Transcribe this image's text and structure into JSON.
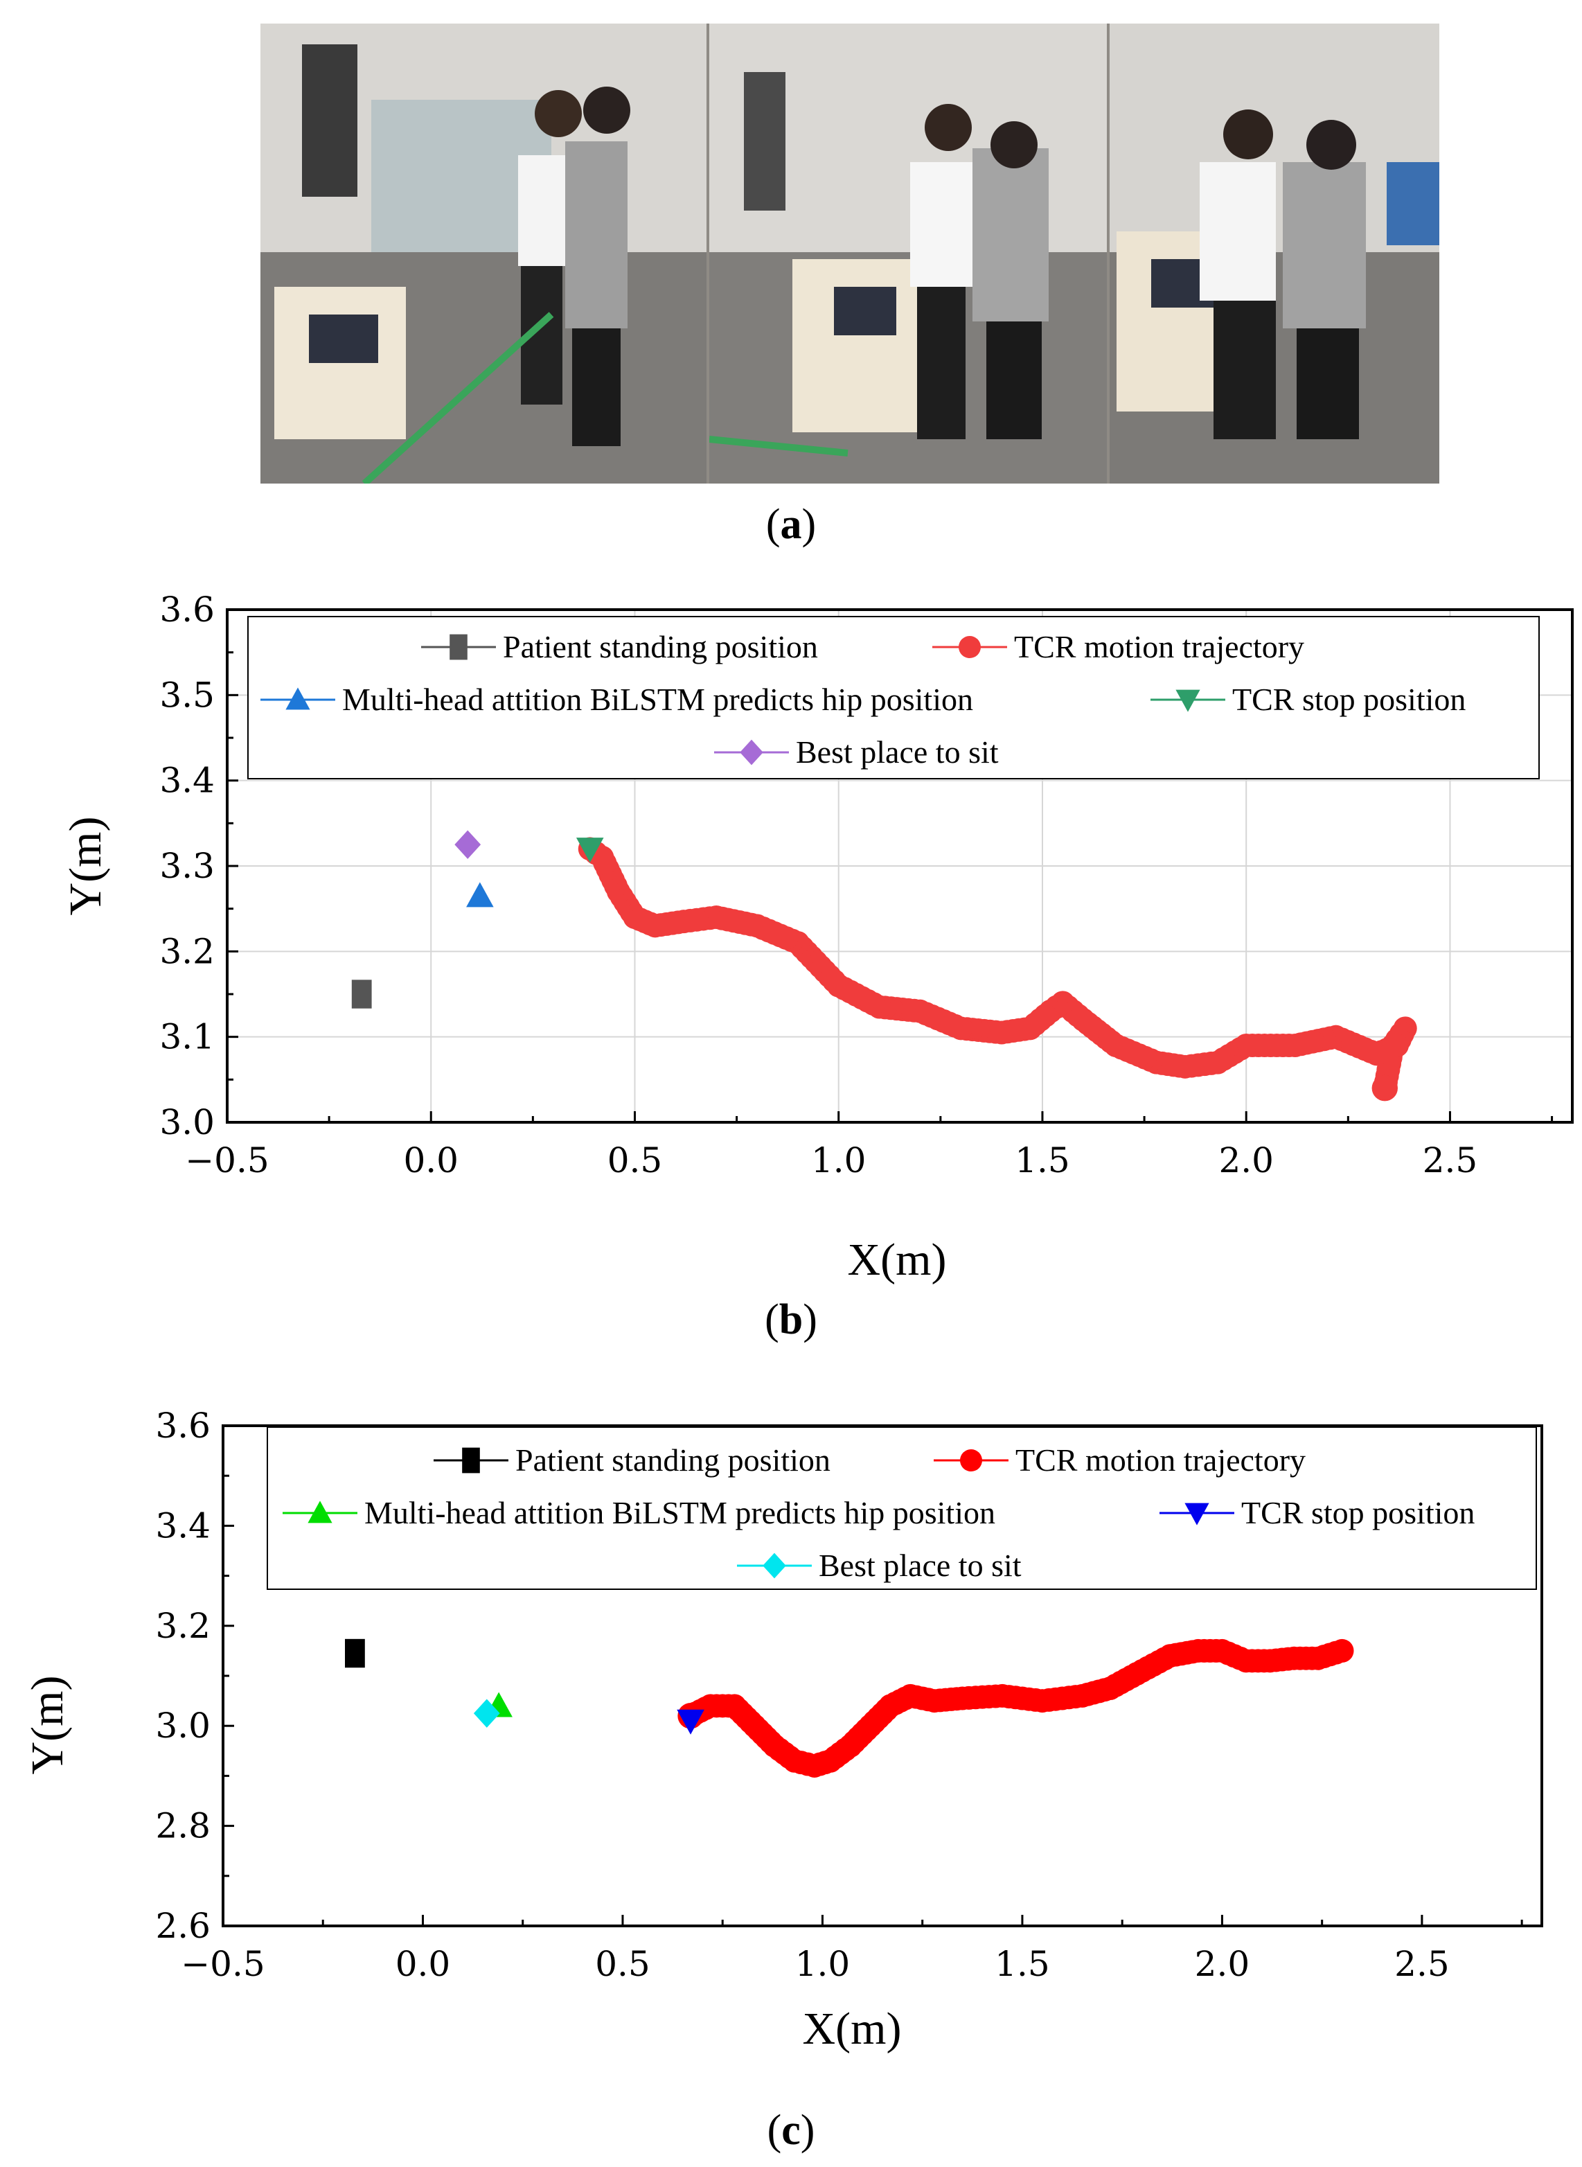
{
  "panel_a": {
    "label": "a"
  },
  "panel_b": {
    "label": "b"
  },
  "panel_c": {
    "label": "c"
  },
  "chart_data": [
    {
      "panel": "b",
      "type": "scatter",
      "xlabel": "X(m)",
      "ylabel": "Y(m)",
      "xlim": [
        -0.5,
        2.8
      ],
      "ylim": [
        3.0,
        3.6
      ],
      "xticks": [
        -0.5,
        0.0,
        0.5,
        1.0,
        1.5,
        2.0,
        2.5
      ],
      "xtick_labels": [
        "−0.5",
        "0.0",
        "0.5",
        "1.0",
        "1.5",
        "2.0",
        "2.5"
      ],
      "yticks": [
        3.0,
        3.1,
        3.2,
        3.3,
        3.4,
        3.5,
        3.6
      ],
      "ytick_labels": [
        "3.0",
        "3.1",
        "3.2",
        "3.3",
        "3.4",
        "3.5",
        "3.6"
      ],
      "grid": true,
      "legend": "top",
      "series": [
        {
          "name": "Patient standing position",
          "marker": "square",
          "color": "#555555",
          "x": [
            -0.17
          ],
          "y": [
            3.15
          ]
        },
        {
          "name": "TCR motion trajectory",
          "marker": "circle",
          "color": "#f03c3c",
          "x": [
            2.34,
            2.36,
            2.39,
            2.37,
            2.32,
            2.22,
            2.12,
            2.0,
            1.93,
            1.85,
            1.78,
            1.68,
            1.6,
            1.55,
            1.52,
            1.47,
            1.4,
            1.3,
            1.2,
            1.1,
            1.0,
            0.9,
            0.8,
            0.7,
            0.62,
            0.55,
            0.5,
            0.46,
            0.42,
            0.39
          ],
          "y": [
            3.04,
            3.09,
            3.11,
            3.09,
            3.08,
            3.1,
            3.09,
            3.09,
            3.07,
            3.065,
            3.07,
            3.09,
            3.12,
            3.14,
            3.13,
            3.11,
            3.105,
            3.11,
            3.13,
            3.135,
            3.16,
            3.21,
            3.23,
            3.24,
            3.235,
            3.23,
            3.24,
            3.27,
            3.31,
            3.32
          ]
        },
        {
          "name": "Multi-head attition BiLSTM predicts hip position",
          "marker": "triangle-up",
          "color": "#1e78d8",
          "x": [
            0.12
          ],
          "y": [
            3.265
          ]
        },
        {
          "name": "TCR stop position",
          "marker": "triangle-down",
          "color": "#2e9e6a",
          "x": [
            0.39
          ],
          "y": [
            3.32
          ]
        },
        {
          "name": "Best place to sit",
          "marker": "diamond",
          "color": "#a66bd6",
          "x": [
            0.09
          ],
          "y": [
            3.325
          ]
        }
      ]
    },
    {
      "panel": "c",
      "type": "scatter",
      "xlabel": "X(m)",
      "ylabel": "Y(m)",
      "xlim": [
        -0.5,
        2.8
      ],
      "ylim": [
        2.6,
        3.6
      ],
      "xticks": [
        -0.5,
        0.0,
        0.5,
        1.0,
        1.5,
        2.0,
        2.5
      ],
      "xtick_labels": [
        "−0.5",
        "0.0",
        "0.5",
        "1.0",
        "1.5",
        "2.0",
        "2.5"
      ],
      "yticks": [
        2.6,
        2.8,
        3.0,
        3.2,
        3.4,
        3.6
      ],
      "ytick_labels": [
        "2.6",
        "2.8",
        "3.0",
        "3.2",
        "3.4",
        "3.6"
      ],
      "grid": false,
      "legend": "top",
      "series": [
        {
          "name": "Patient standing position",
          "marker": "square",
          "color": "#000000",
          "x": [
            -0.17
          ],
          "y": [
            3.145
          ]
        },
        {
          "name": "TCR motion trajectory",
          "marker": "circle",
          "color": "#ff0000",
          "x": [
            0.67,
            0.72,
            0.78,
            0.83,
            0.88,
            0.93,
            0.98,
            1.02,
            1.07,
            1.12,
            1.17,
            1.22,
            1.28,
            1.35,
            1.45,
            1.55,
            1.65,
            1.72,
            1.8,
            1.87,
            1.94,
            2.0,
            2.06,
            2.12,
            2.18,
            2.24,
            2.3
          ],
          "y": [
            3.02,
            3.04,
            3.04,
            3.0,
            2.96,
            2.93,
            2.92,
            2.93,
            2.96,
            3.0,
            3.04,
            3.06,
            3.05,
            3.055,
            3.06,
            3.05,
            3.06,
            3.075,
            3.11,
            3.14,
            3.15,
            3.15,
            3.13,
            3.13,
            3.135,
            3.135,
            3.15
          ]
        },
        {
          "name": "Multi-head attition BiLSTM predicts hip position",
          "marker": "triangle-up",
          "color": "#00dd00",
          "x": [
            0.19
          ],
          "y": [
            3.04
          ]
        },
        {
          "name": "TCR stop position",
          "marker": "triangle-down",
          "color": "#0000ee",
          "x": [
            0.67
          ],
          "y": [
            3.01
          ]
        },
        {
          "name": "Best place to sit",
          "marker": "diamond",
          "color": "#00e5ee",
          "x": [
            0.16
          ],
          "y": [
            3.025
          ]
        }
      ]
    }
  ]
}
